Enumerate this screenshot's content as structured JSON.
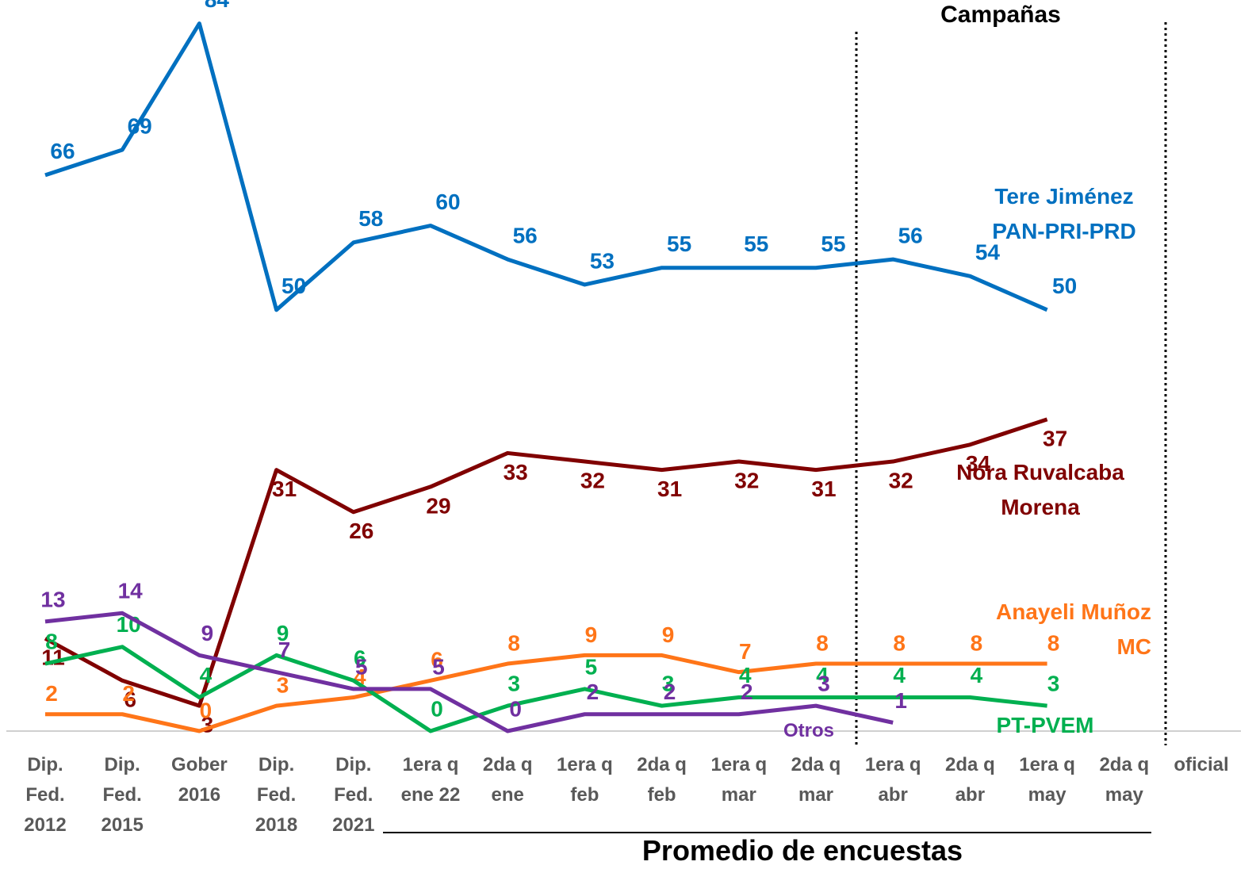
{
  "chart_data": {
    "type": "line",
    "title": "Campañas",
    "subtitle": "Promedio de encuestas",
    "categories": [
      "Dip.\nFed.\n2012",
      "Dip.\nFed.\n2015",
      "Gober\n2016",
      "Dip.\nFed.\n2018",
      "Dip.\nFed.\n2021",
      "1era q\nene 22",
      "2da q\nene",
      "1era q\nfeb",
      "2da q\nfeb",
      "1era q\nmar",
      "2da q\nmar",
      "1era q\nabr",
      "2da q\nabr",
      "1era q\nmay",
      "2da q\nmay",
      "oficial"
    ],
    "ylim": [
      0,
      85
    ],
    "series": [
      {
        "name": "Tere Jiménez\nPAN-PRI-PRD",
        "color": "#0070C0",
        "values": [
          66,
          69,
          84,
          50,
          58,
          60,
          56,
          53,
          55,
          55,
          55,
          56,
          54,
          50,
          null,
          null
        ]
      },
      {
        "name": "Nora Ruvalcaba\nMorena",
        "color": "#800000",
        "values": [
          11,
          6,
          3,
          31,
          26,
          29,
          33,
          32,
          31,
          32,
          31,
          32,
          34,
          37,
          null,
          null
        ]
      },
      {
        "name": "Anayeli Muñoz\nMC",
        "color": "#FF7518",
        "values": [
          2,
          2,
          0,
          3,
          4,
          6,
          8,
          9,
          9,
          7,
          8,
          8,
          8,
          8,
          null,
          null
        ]
      },
      {
        "name": "PT-PVEM",
        "color": "#00B050",
        "values": [
          8,
          10,
          4,
          9,
          6,
          0,
          3,
          5,
          3,
          4,
          4,
          4,
          4,
          3,
          null,
          null
        ]
      },
      {
        "name": "Otros",
        "color": "#7030A0",
        "values": [
          13,
          14,
          9,
          7,
          5,
          5,
          0,
          2,
          2,
          2,
          3,
          1,
          null,
          null,
          null,
          null
        ]
      }
    ]
  }
}
